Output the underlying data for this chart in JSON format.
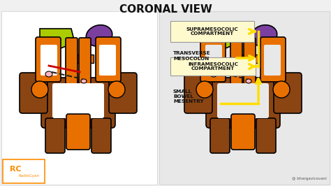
{
  "title": "CORONAL VIEW",
  "bg_color": "#f0f0f0",
  "left_bg": "#ffffff",
  "right_bg": "#e8e8e8",
  "label_box_color": "#fffacd",
  "colors": {
    "green": "#aacc00",
    "purple": "#7b3fa0",
    "orange": "#e87000",
    "brown": "#8b4513",
    "red": "#cc0000",
    "pink": "#ffb6c1",
    "yellow_arrow": "#ffdd00",
    "outline": "#000000",
    "white": "#ffffff"
  },
  "labels": {
    "supramesocolic": "SUPRAMESOCOLIC\nCOMPARTMENT",
    "transverse": "TRANSVERSE\nMESOCOLON",
    "inframes": "INFRAMESOCOLIC\nCOMPARTMENT",
    "small_bowel": "SMALL\nBOWEL\nMESENTRY",
    "radiogyan": "RadioGyan",
    "rc": "RC",
    "instagram": "@ bhargavicovani"
  }
}
